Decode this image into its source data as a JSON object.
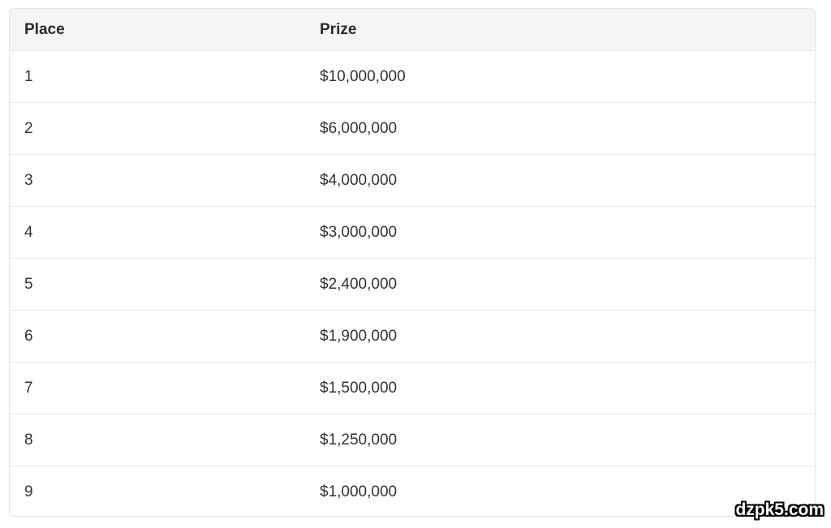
{
  "table": {
    "headers": [
      "Place",
      "Prize"
    ],
    "rows": [
      {
        "place": "1",
        "prize": "$10,000,000"
      },
      {
        "place": "2",
        "prize": "$6,000,000"
      },
      {
        "place": "3",
        "prize": "$4,000,000"
      },
      {
        "place": "4",
        "prize": "$3,000,000"
      },
      {
        "place": "5",
        "prize": "$2,400,000"
      },
      {
        "place": "6",
        "prize": "$1,900,000"
      },
      {
        "place": "7",
        "prize": "$1,500,000"
      },
      {
        "place": "8",
        "prize": "$1,250,000"
      },
      {
        "place": "9",
        "prize": "$1,000,000"
      }
    ]
  },
  "watermark": "dzpk5.com"
}
